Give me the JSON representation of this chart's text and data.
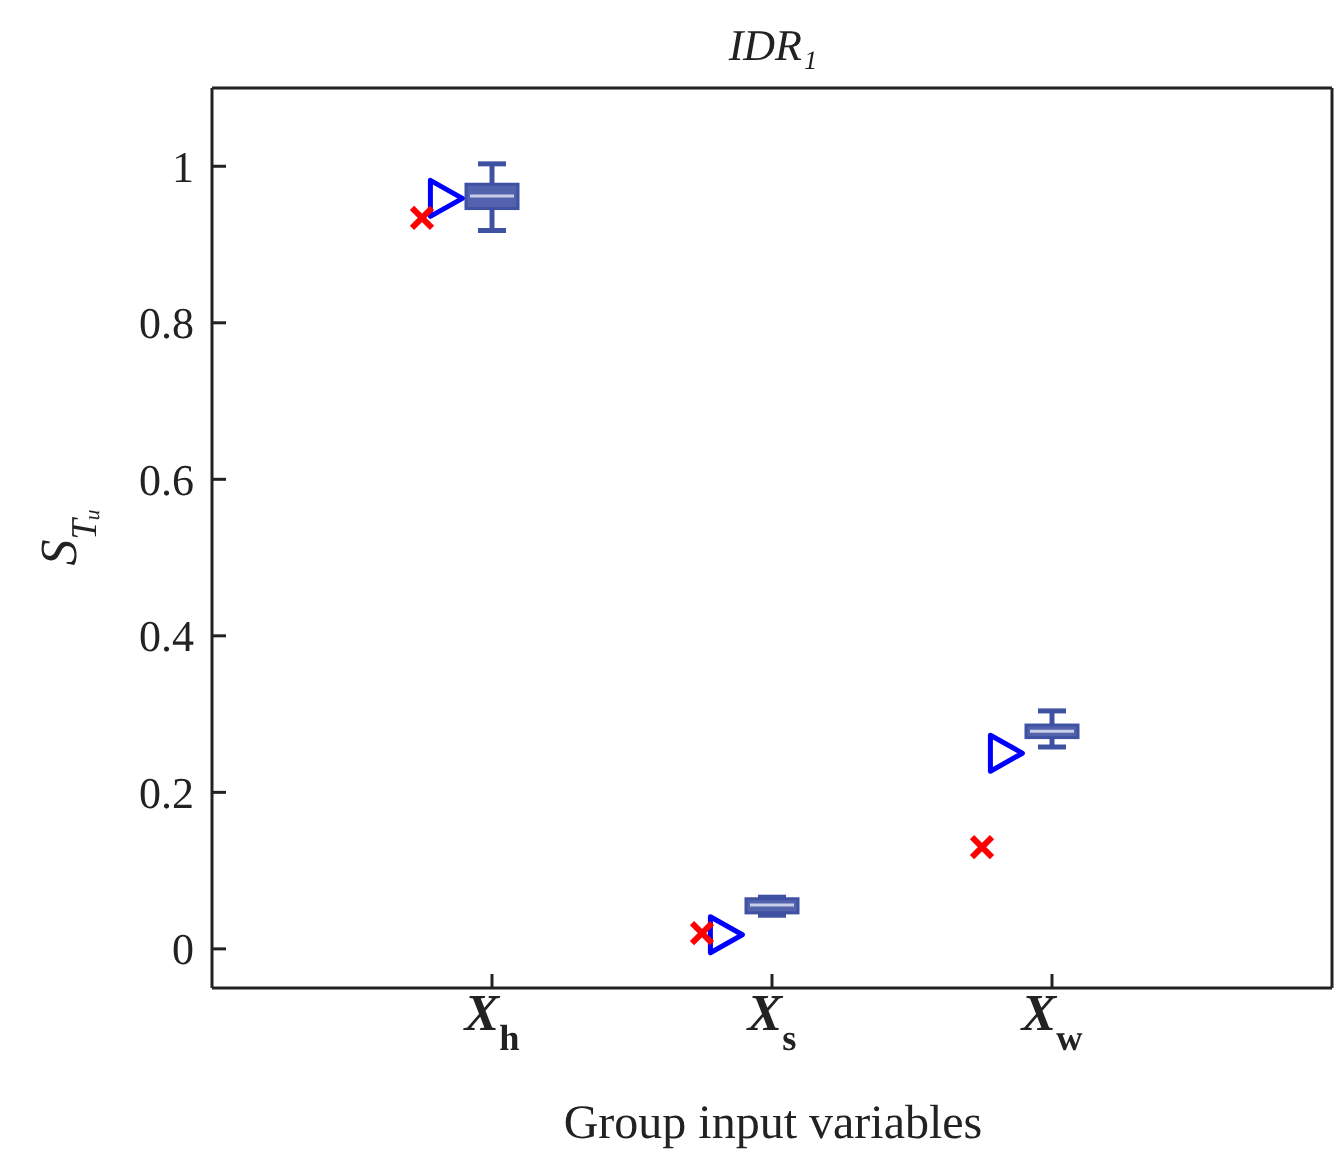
{
  "chart_data": {
    "type": "box",
    "title": "IDR₁",
    "xlabel": "Group input variables",
    "ylabel": "S$_{Tᵤ}$",
    "categories": [
      "X$_{h}$",
      "X$_{s}$",
      "X$_{w}$"
    ],
    "ylim": [
      -0.05,
      1.1
    ],
    "yticks": [
      0,
      0.2,
      0.4,
      0.6,
      0.8,
      1
    ],
    "series": [
      {
        "color": "#3f51a3",
        "boxes": [
          {
            "low": 0.918,
            "q1": 0.946,
            "median": 0.962,
            "q3": 0.977,
            "high": 1.003
          },
          {
            "low": 0.043,
            "q1": 0.046,
            "median": 0.056,
            "q3": 0.064,
            "high": 0.066
          },
          {
            "low": 0.258,
            "q1": 0.27,
            "median": 0.278,
            "q3": 0.286,
            "high": 0.304
          }
        ]
      },
      {
        "type": "scatter",
        "color": "#0000ff",
        "marker": "triangle",
        "x": [
          "X$_{h}$",
          "X$_{s}$",
          "X$_{w}$"
        ],
        "values": [
          0.959,
          0.018,
          0.25
        ]
      },
      {
        "type": "scatter",
        "color": "#ff0000",
        "marker": "cross",
        "x": [
          "X$_{h}$",
          "X$_{s}$",
          "X$_{w}$"
        ],
        "values": [
          0.934,
          0.02,
          0.13
        ]
      }
    ]
  }
}
